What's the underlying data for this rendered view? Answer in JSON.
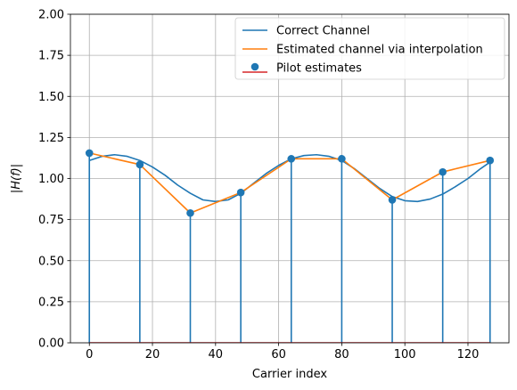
{
  "chart_data": {
    "type": "line",
    "title": "",
    "xlabel": "Carrier index",
    "ylabel": "|H(f)|",
    "xlim": [
      -6,
      133
    ],
    "ylim": [
      0,
      2
    ],
    "xticks": [
      0,
      20,
      40,
      60,
      80,
      100,
      120
    ],
    "xtick_labels": [
      "0",
      "20",
      "40",
      "60",
      "80",
      "100",
      "120"
    ],
    "yticks": [
      0,
      0.25,
      0.5,
      0.75,
      1.0,
      1.25,
      1.5,
      1.75,
      2.0
    ],
    "ytick_labels": [
      "0.00",
      "0.25",
      "0.50",
      "0.75",
      "1.00",
      "1.25",
      "1.50",
      "1.75",
      "2.00"
    ],
    "grid": true,
    "legend_position": "top-right",
    "series": [
      {
        "name": "Correct Channel",
        "kind": "line",
        "color": "#1f77b4",
        "x": [
          0,
          4,
          8,
          12,
          16,
          20,
          24,
          28,
          32,
          36,
          40,
          44,
          48,
          52,
          56,
          60,
          64,
          68,
          72,
          76,
          80,
          84,
          88,
          92,
          96,
          100,
          104,
          108,
          112,
          116,
          120,
          124,
          127
        ],
        "y": [
          1.11,
          1.135,
          1.145,
          1.135,
          1.11,
          1.07,
          1.02,
          0.96,
          0.91,
          0.87,
          0.86,
          0.87,
          0.91,
          0.97,
          1.03,
          1.08,
          1.12,
          1.14,
          1.145,
          1.135,
          1.11,
          1.06,
          1.0,
          0.94,
          0.89,
          0.865,
          0.86,
          0.875,
          0.905,
          0.95,
          1.0,
          1.06,
          1.1
        ]
      },
      {
        "name": "Estimated channel via interpolation",
        "kind": "line",
        "color": "#ff7f0e",
        "x": [
          0,
          16,
          32,
          48,
          64,
          80,
          96,
          112,
          127
        ],
        "y": [
          1.155,
          1.085,
          0.79,
          0.915,
          1.12,
          1.12,
          0.87,
          1.04,
          1.11
        ]
      },
      {
        "name": "Pilot estimates",
        "kind": "stem",
        "color": "#1f77b4",
        "baseline_color": "#d62728",
        "x": [
          0,
          16,
          32,
          48,
          64,
          80,
          96,
          112,
          127
        ],
        "y": [
          1.155,
          1.085,
          0.79,
          0.915,
          1.12,
          1.12,
          0.87,
          1.04,
          1.11
        ]
      }
    ]
  }
}
